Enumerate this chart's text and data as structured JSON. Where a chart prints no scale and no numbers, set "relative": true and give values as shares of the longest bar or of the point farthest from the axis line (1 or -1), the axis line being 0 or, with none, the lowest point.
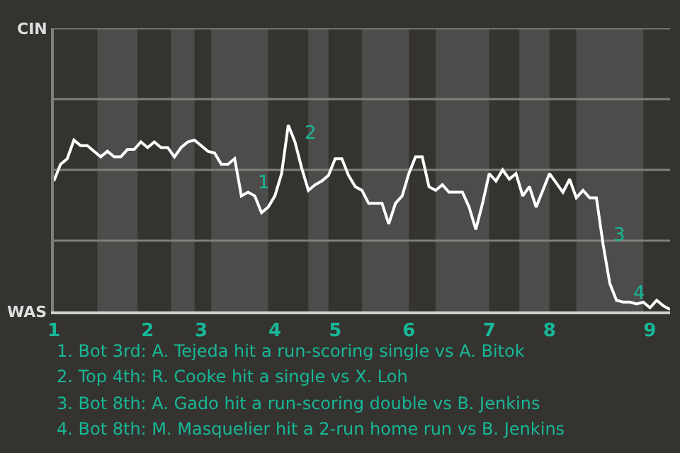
{
  "chart_data": {
    "type": "line",
    "relative": true,
    "categories": [
      "1",
      null,
      null,
      null,
      null,
      null,
      null,
      null,
      null,
      null,
      null,
      null,
      null,
      null,
      "2",
      null,
      null,
      null,
      null,
      null,
      null,
      null,
      "3",
      null,
      null,
      null,
      null,
      null,
      null,
      null,
      null,
      null,
      null,
      "4",
      null,
      null,
      null,
      null,
      null,
      null,
      null,
      null,
      "5",
      null,
      null,
      null,
      null,
      null,
      null,
      null,
      null,
      null,
      null,
      "6",
      null,
      null,
      null,
      null,
      null,
      null,
      null,
      null,
      null,
      null,
      null,
      "7",
      null,
      null,
      null,
      null,
      null,
      null,
      null,
      null,
      "8",
      null,
      null,
      null,
      null,
      null,
      null,
      null,
      null,
      null,
      null,
      null,
      null,
      null,
      null,
      "9",
      null,
      null,
      null
    ],
    "series": [
      {
        "color": "#ffffff",
        "values": [
          0.7,
          0.79,
          0.82,
          0.92,
          0.89,
          0.89,
          0.86,
          0.83,
          0.86,
          0.83,
          0.83,
          0.87,
          0.87,
          0.91,
          0.88,
          0.91,
          0.88,
          0.88,
          0.83,
          0.88,
          0.91,
          0.92,
          0.89,
          0.86,
          0.85,
          0.79,
          0.79,
          0.82,
          0.62,
          0.64,
          0.62,
          0.53,
          0.56,
          0.62,
          0.74,
          1,
          0.91,
          0.77,
          0.65,
          0.68,
          0.7,
          0.73,
          0.82,
          0.82,
          0.73,
          0.67,
          0.65,
          0.58,
          0.58,
          0.58,
          0.47,
          0.58,
          0.62,
          0.74,
          0.83,
          0.83,
          0.67,
          0.65,
          0.68,
          0.64,
          0.64,
          0.64,
          0.56,
          0.44,
          0.58,
          0.74,
          0.7,
          0.76,
          0.71,
          0.74,
          0.62,
          0.67,
          0.56,
          0.65,
          0.74,
          0.69,
          0.64,
          0.71,
          0.61,
          0.65,
          0.61,
          0.61,
          0.36,
          0.15,
          0.06,
          0.05,
          0.05,
          0.04,
          0.05,
          0.02,
          0.06,
          0.03,
          0.01
        ]
      }
    ],
    "marker": "none",
    "line_style": "solid",
    "ref_lines": [
      {
        "axis": "y",
        "value": 0.38,
        "color": "#807e7b"
      },
      {
        "axis": "y",
        "value": 0.76,
        "color": "#807e7b"
      },
      {
        "axis": "y",
        "value": 1.14,
        "color": "#807e7b"
      },
      {
        "axis": "y",
        "value": 1.52,
        "color": "#807e7b"
      }
    ],
    "annotations": [
      "CIN",
      "WAS",
      "1",
      "2",
      "3",
      "4",
      "1. Bot 3rd: A. Tejeda hit a run-scoring single vs A. Bitok",
      "2. Top 4th: R. Cooke hit a single vs X. Loh",
      "3. Bot 8th: A. Gado hit a run-scoring double vs B. Jenkins",
      "4. Bot 8th: M. Masquelier hit a 2-run home run vs B. Jenkins"
    ]
  }
}
